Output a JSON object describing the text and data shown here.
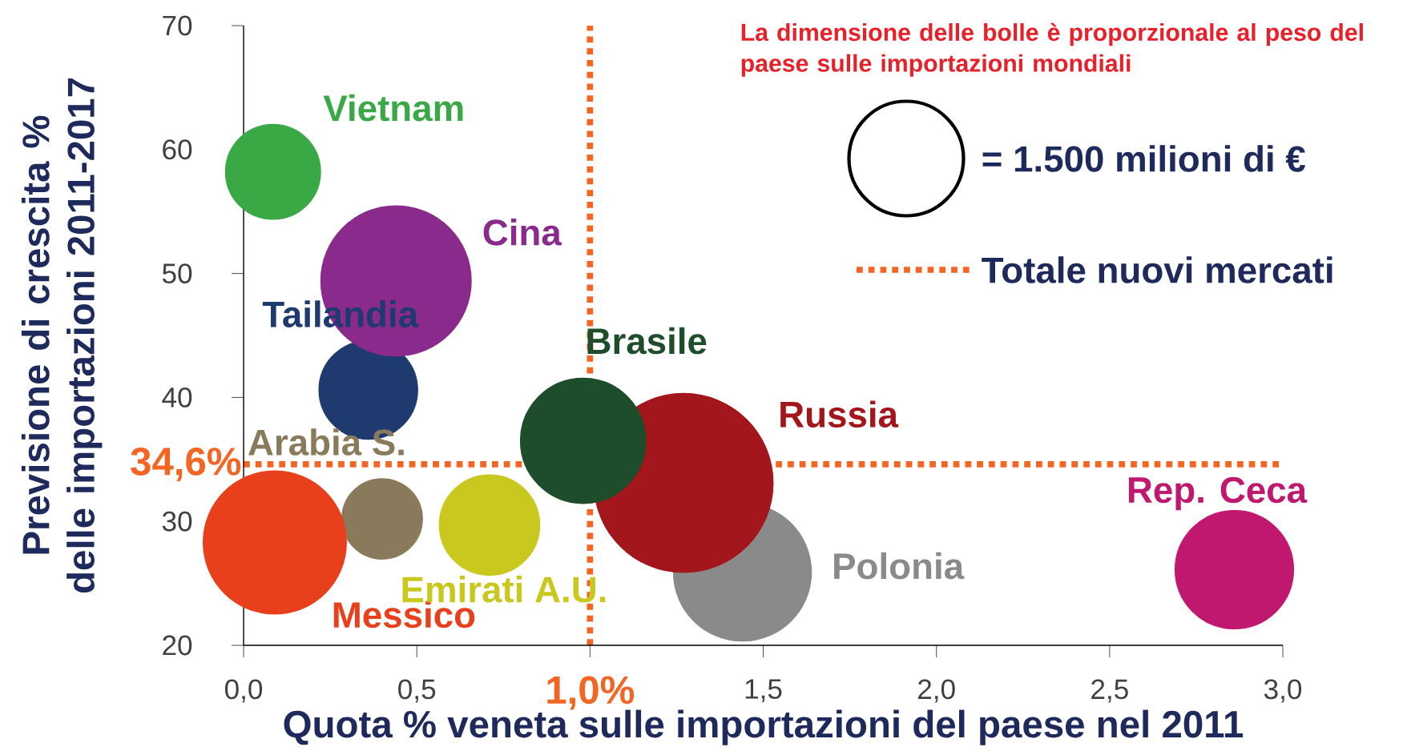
{
  "chart_data": {
    "type": "bubble",
    "xlabel": "Quota % veneta sulle importazioni del paese nel 2011",
    "ylabel": "Previsione di crescita % delle importazioni 2011-2017",
    "xlim": [
      0,
      3.0
    ],
    "ylim": [
      20,
      70
    ],
    "xticks": [
      {
        "value": 0,
        "label": "0,0"
      },
      {
        "value": 0.5,
        "label": "0,5"
      },
      {
        "value": 1.0,
        "label": null
      },
      {
        "value": 1.5,
        "label": "1,5"
      },
      {
        "value": 2.0,
        "label": "2,0"
      },
      {
        "value": 2.5,
        "label": "2,5"
      },
      {
        "value": 3.0,
        "label": "3,0"
      }
    ],
    "yticks": [
      20,
      30,
      40,
      50,
      60,
      70
    ],
    "size_legend": [
      {
        "value": 1500,
        "label": "= 1.500 milioni di €"
      }
    ],
    "ref_lines": [
      {
        "axis": "x",
        "value": 1.0,
        "label": "1,0%",
        "color": "#f26522",
        "line_style": "dotted"
      },
      {
        "axis": "y",
        "value": 34.6,
        "label": "34,6%",
        "color": "#f26522",
        "line_style": "dotted"
      }
    ],
    "annotations": [
      "La dimensione delle bolle è proporzionale al peso del paese sulle importazioni mondiali",
      "Totale nuovi mercati"
    ],
    "series": [
      {
        "name": "Vietnam",
        "color": "#3aa845",
        "x": [
          0.085
        ],
        "values": [
          58.2
        ],
        "sizes": [
          1030
        ]
      },
      {
        "name": "Tailandia",
        "color": "#1f3a6e",
        "x": [
          0.36
        ],
        "values": [
          40.6
        ],
        "sizes": [
          1110
        ]
      },
      {
        "name": "Cina",
        "color": "#8a2a8c",
        "x": [
          0.44
        ],
        "values": [
          49.4
        ],
        "sizes": [
          2580
        ]
      },
      {
        "name": "Polonia",
        "color": "#8a8a8a",
        "x": [
          1.44
        ],
        "values": [
          25.9
        ],
        "sizes": [
          2170
        ]
      },
      {
        "name": "Russia",
        "color": "#a3161b",
        "x": [
          1.27
        ],
        "values": [
          33.1
        ],
        "sizes": [
          3660
        ]
      },
      {
        "name": "Brasile",
        "color": "#1d4d2a",
        "x": [
          0.98
        ],
        "values": [
          36.5
        ],
        "sizes": [
          1790
        ]
      },
      {
        "name": "Arabia S.",
        "color": "#8a7a5c",
        "x": [
          0.4
        ],
        "values": [
          30.2
        ],
        "sizes": [
          740
        ]
      },
      {
        "name": "Messico",
        "color": "#e8401c",
        "x": [
          0.09
        ],
        "values": [
          28.3
        ],
        "sizes": [
          2340
        ]
      },
      {
        "name": "Emirati A.U.",
        "color": "#c8c81e",
        "x": [
          0.71
        ],
        "values": [
          29.7
        ],
        "sizes": [
          1150
        ]
      },
      {
        "name": "Rep. Ceca",
        "color": "#c0186e",
        "x": [
          2.86
        ],
        "values": [
          26.1
        ],
        "sizes": [
          1600
        ]
      }
    ]
  }
}
